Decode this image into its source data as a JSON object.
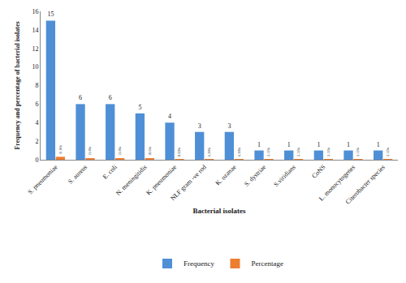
{
  "chart_data": {
    "type": "bar",
    "x_label": "Bacterial isolates",
    "y_label": "Frequency and percentage of bacterial isolates",
    "categories": [
      "S. pneumoniae",
      "S. aureus",
      "E. coli",
      "N. meningitidis",
      "K. pneumoniae",
      "NLF gram -ve rod",
      "K. ozanae",
      "S. dystriae",
      "S.viridians",
      "CoNS",
      "L. monocytogenes",
      "Citerobacter species"
    ],
    "series": [
      {
        "name": "Frequency",
        "color": "#4f8fd6",
        "values": [
          15,
          6,
          6,
          5,
          4,
          3,
          3,
          1,
          1,
          1,
          1,
          1
        ]
      },
      {
        "name": "Percentage",
        "color": "#ed7d31",
        "values": [
          0.319,
          0.128,
          0.128,
          0.106,
          0.085,
          0.0638,
          0.0638,
          0.0212,
          0.0212,
          0.0212,
          0.0212,
          0.0212
        ],
        "value_labels": [
          "31.9%",
          "12.8%",
          "12.8%",
          "10.6%",
          "8.50%",
          "6.38%",
          "6.38%",
          "2.12%",
          "2.12%",
          "2.12%",
          "2.12%",
          "2.12%"
        ]
      }
    ],
    "ylim": [
      0,
      16
    ],
    "yticks": [
      0,
      2,
      4,
      6,
      8,
      10,
      12,
      14,
      16
    ],
    "grid": false,
    "legend": "bottom",
    "data_labels": true
  }
}
